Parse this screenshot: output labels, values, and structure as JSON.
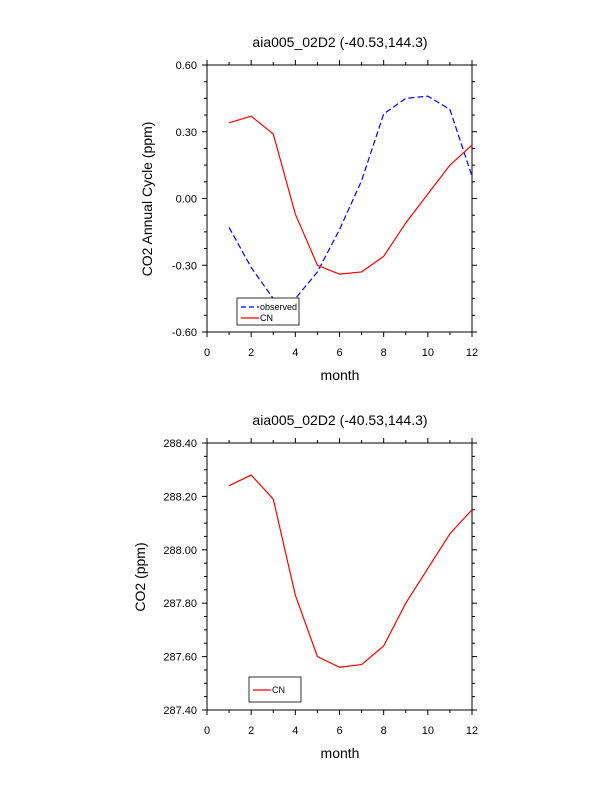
{
  "chart_data": [
    {
      "type": "line",
      "title": "aia005_02D2 (-40.53,144.3)",
      "xlabel": "month",
      "ylabel": "CO2 Annual Cycle (ppm)",
      "xlim": [
        0,
        12
      ],
      "ylim": [
        -0.6,
        0.6
      ],
      "xticks": [
        "0",
        "2",
        "4",
        "6",
        "8",
        "10",
        "12"
      ],
      "yticks": [
        "-0.60",
        "-0.30",
        "0.00",
        "0.30",
        "0.60"
      ],
      "legend_position": "bottom-left",
      "x": [
        1,
        2,
        3,
        4,
        5,
        6,
        7,
        8,
        9,
        10,
        11,
        12
      ],
      "series": [
        {
          "name": "observed",
          "color": "#0000ff",
          "dash": "dashed",
          "values": [
            -0.13,
            -0.31,
            -0.45,
            -0.45,
            -0.33,
            -0.14,
            0.08,
            0.38,
            0.45,
            0.46,
            0.4,
            0.1
          ]
        },
        {
          "name": "CN",
          "color": "#ff0000",
          "dash": "solid",
          "values": [
            0.34,
            0.37,
            0.29,
            -0.07,
            -0.3,
            -0.34,
            -0.33,
            -0.26,
            -0.11,
            0.02,
            0.15,
            0.24
          ]
        }
      ]
    },
    {
      "type": "line",
      "title": "aia005_02D2 (-40.53,144.3)",
      "xlabel": "month",
      "ylabel": "CO2 (ppm)",
      "xlim": [
        0,
        12
      ],
      "ylim": [
        287.4,
        288.4
      ],
      "xticks": [
        "0",
        "2",
        "4",
        "6",
        "8",
        "10",
        "12"
      ],
      "yticks": [
        "287.40",
        "287.60",
        "287.80",
        "288.00",
        "288.20",
        "288.40"
      ],
      "legend_position": "bottom-left",
      "x": [
        1,
        2,
        3,
        4,
        5,
        6,
        7,
        8,
        9,
        10,
        11,
        12
      ],
      "series": [
        {
          "name": "CN",
          "color": "#ff0000",
          "dash": "solid",
          "values": [
            288.24,
            288.28,
            288.19,
            287.83,
            287.6,
            287.56,
            287.57,
            287.64,
            287.8,
            287.93,
            288.06,
            288.15
          ]
        }
      ]
    }
  ]
}
